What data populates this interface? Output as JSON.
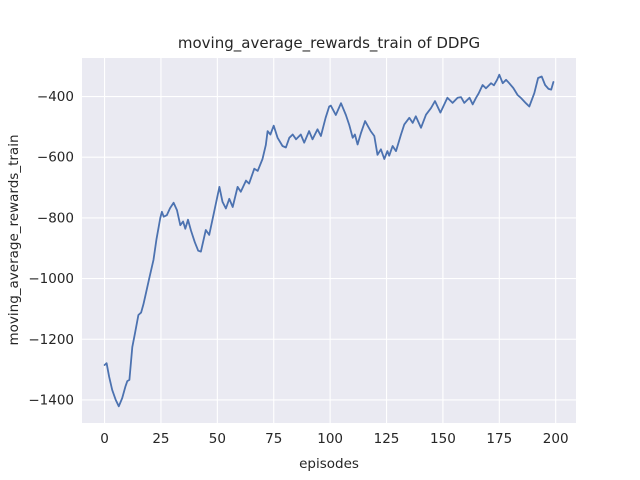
{
  "chart_data": {
    "type": "line",
    "title": "moving_average_rewards_train of DDPG",
    "xlabel": "episodes",
    "ylabel": "moving_average_rewards_train",
    "grid": "on",
    "legend": "none",
    "style": {
      "line_color": "#4C72B0",
      "plot_bg_color": "#EAEAF2",
      "grid_color": "#FFFFFF",
      "text_color": "#262626",
      "line_width": 1.8
    },
    "xlim": [
      -10,
      209
    ],
    "ylim": [
      -1476,
      -273
    ],
    "xticks": {
      "values": [
        0,
        25,
        50,
        75,
        100,
        125,
        150,
        175,
        200
      ],
      "labels": [
        "0",
        "25",
        "50",
        "75",
        "100",
        "125",
        "150",
        "175",
        "200"
      ]
    },
    "yticks": {
      "values": [
        -400,
        -600,
        -800,
        -1000,
        -1200,
        -1400
      ],
      "labels": [
        "−400",
        "−600",
        "−800",
        "−1000",
        "−1200",
        "−1400"
      ]
    },
    "series": [
      {
        "name": "moving_average_rewards_train",
        "x": [
          0,
          0.9,
          2,
          3.4,
          4.9,
          6.3,
          7.8,
          9.3,
          10.1,
          11,
          12.3,
          13.5,
          15,
          16.2,
          17.2,
          18,
          19.8,
          21.7,
          23,
          24.7,
          25.4,
          26.2,
          27.6,
          29,
          30.6,
          32.1,
          33.6,
          34.8,
          35.8,
          37,
          38.3,
          40,
          41.5,
          42.7,
          44.9,
          46.4,
          48.5,
          50.9,
          52.3,
          53.8,
          55.3,
          56.8,
          59,
          60.4,
          62.7,
          64.1,
          66.4,
          67.9,
          70,
          71.5,
          72.3,
          73.5,
          75,
          76.7,
          78.9,
          80.4,
          81.9,
          83.4,
          84.9,
          87,
          88.5,
          90.7,
          92.2,
          94.4,
          95.9,
          98,
          99.6,
          100.3,
          102.5,
          104.8,
          107,
          108.5,
          110,
          111,
          112.2,
          113.7,
          115.5,
          118,
          119.6,
          121,
          122.5,
          124,
          125.4,
          126.2,
          127.7,
          129.2,
          131.4,
          132.9,
          135.1,
          136.6,
          138,
          140.3,
          142.5,
          144.7,
          146.5,
          148.9,
          152,
          154.3,
          156.5,
          158,
          159.5,
          161.8,
          163.2,
          164.7,
          165.8,
          167.6,
          169.1,
          171.3,
          172.6,
          174,
          175,
          176.5,
          178,
          179.4,
          181.2,
          183.1,
          184.6,
          186.8,
          188.3,
          190.5,
          192.2,
          193.8,
          195.3,
          196.8,
          198,
          199
        ],
        "y": [
          -1285,
          -1279,
          -1323,
          -1367,
          -1399,
          -1421,
          -1394,
          -1355,
          -1338,
          -1334,
          -1226,
          -1180,
          -1120,
          -1112,
          -1085,
          -1059,
          -1000,
          -938,
          -872,
          -800,
          -780,
          -796,
          -791,
          -768,
          -750,
          -775,
          -824,
          -812,
          -836,
          -806,
          -842,
          -880,
          -908,
          -911,
          -840,
          -856,
          -782,
          -698,
          -747,
          -769,
          -737,
          -764,
          -698,
          -714,
          -677,
          -687,
          -638,
          -645,
          -606,
          -560,
          -514,
          -525,
          -496,
          -536,
          -563,
          -568,
          -536,
          -525,
          -541,
          -525,
          -552,
          -514,
          -541,
          -508,
          -530,
          -470,
          -433,
          -430,
          -461,
          -422,
          -461,
          -494,
          -536,
          -525,
          -558,
          -520,
          -481,
          -514,
          -530,
          -592,
          -574,
          -606,
          -580,
          -595,
          -563,
          -580,
          -525,
          -492,
          -470,
          -487,
          -465,
          -503,
          -460,
          -438,
          -415,
          -453,
          -404,
          -421,
          -404,
          -402,
          -421,
          -404,
          -426,
          -404,
          -390,
          -362,
          -373,
          -356,
          -363,
          -345,
          -328,
          -356,
          -345,
          -356,
          -372,
          -395,
          -405,
          -422,
          -433,
          -389,
          -339,
          -334,
          -362,
          -375,
          -377,
          -352
        ]
      }
    ]
  }
}
